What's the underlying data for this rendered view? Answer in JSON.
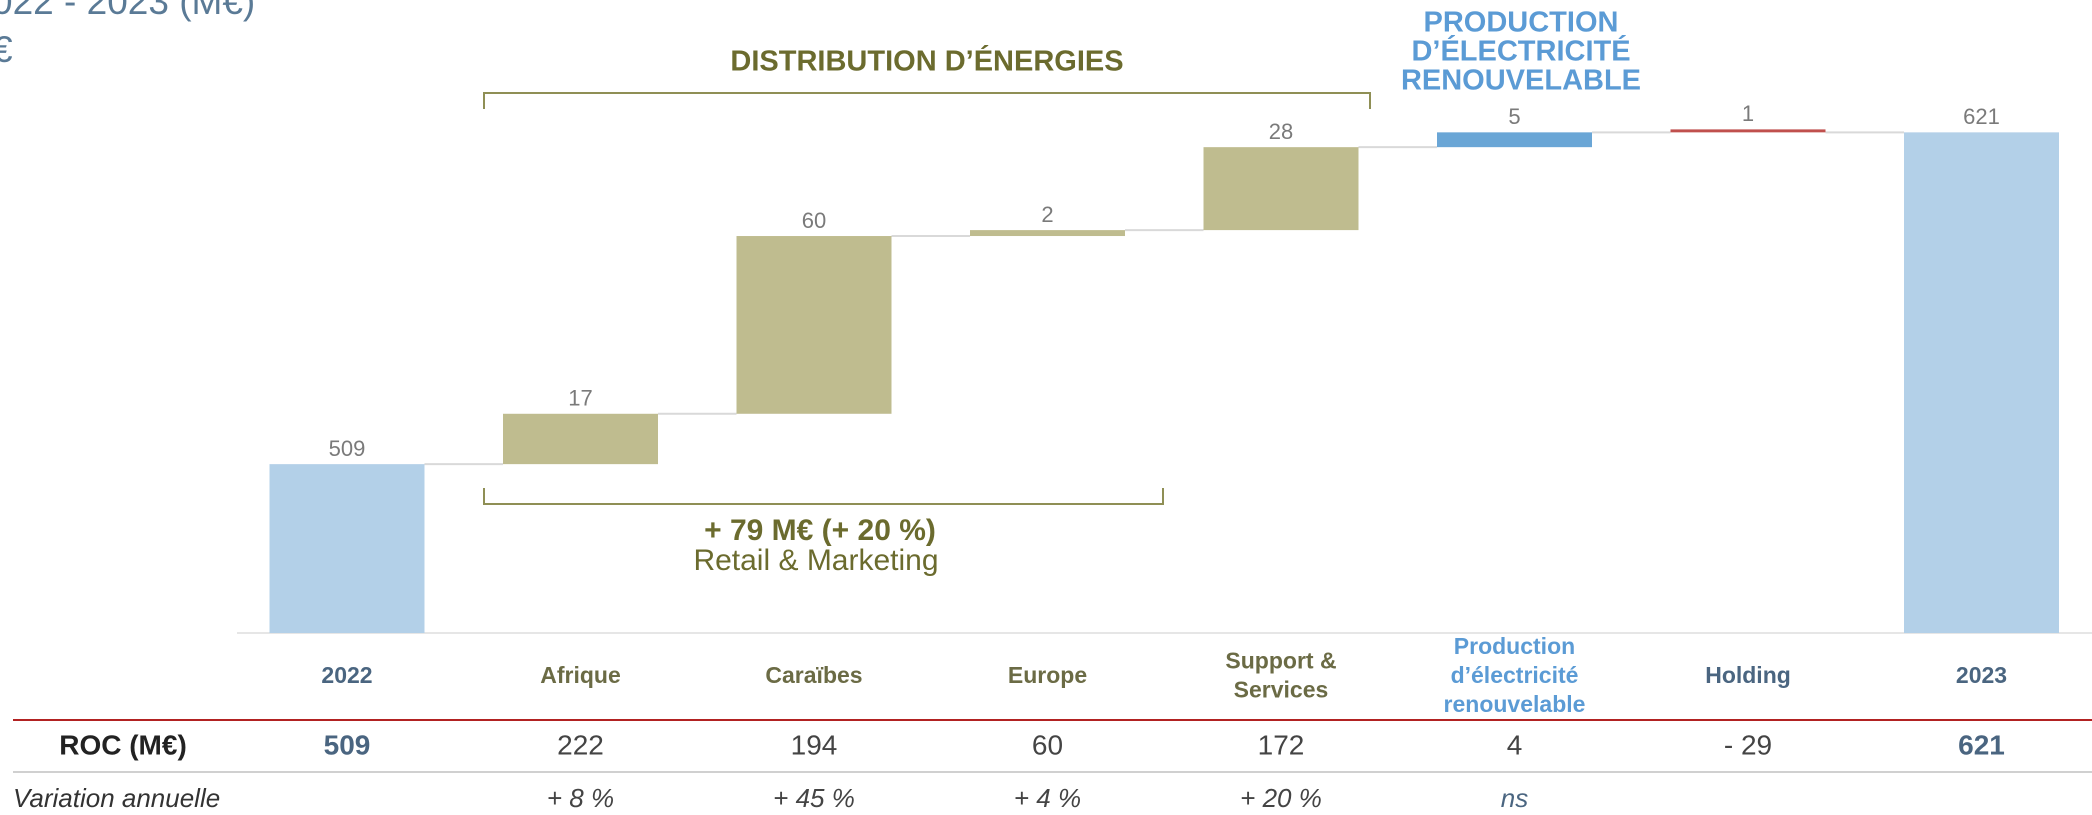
{
  "chart_data": {
    "type": "waterfall",
    "title": "022 - 2023 (M€)",
    "subtitle": "€",
    "categories": [
      [
        "2022"
      ],
      [
        "Afrique"
      ],
      [
        "Caraïbes"
      ],
      [
        "Europe"
      ],
      [
        "Support &",
        "Services"
      ],
      [
        "Production",
        "d’électricité",
        "renouvelable"
      ],
      [
        "Holding"
      ],
      [
        "2023"
      ]
    ],
    "values": [
      509,
      17,
      60,
      2,
      28,
      5,
      1,
      621
    ],
    "colors": [
      "#b3d0e8",
      "#bfbc8f",
      "#bfbc8f",
      "#bfbc8f",
      "#bfbc8f",
      "#6aa6d6",
      "#c0504d",
      "#b3d0e8"
    ],
    "ylim": [
      452,
      665
    ],
    "annotations": {
      "distribution": "DISTRIBUTION D’ÉNERGIES",
      "production": [
        "PRODUCTION",
        "D’ÉLECTRICITÉ",
        "RENOUVELABLE"
      ],
      "retail_value": "+ 79 M€ (+ 20 %)",
      "retail_label": "Retail & Marketing"
    },
    "table": {
      "rows": [
        {
          "label": "ROC (M€)",
          "cells": [
            "509",
            "222",
            "194",
            "60",
            "172",
            "4",
            "- 29",
            "621"
          ]
        },
        {
          "label": "Variation annuelle",
          "cells": [
            null,
            "+ 8 %",
            "+ 45 %",
            "+ 4 %",
            "+ 20 %",
            "ns",
            null,
            null
          ]
        }
      ]
    }
  }
}
